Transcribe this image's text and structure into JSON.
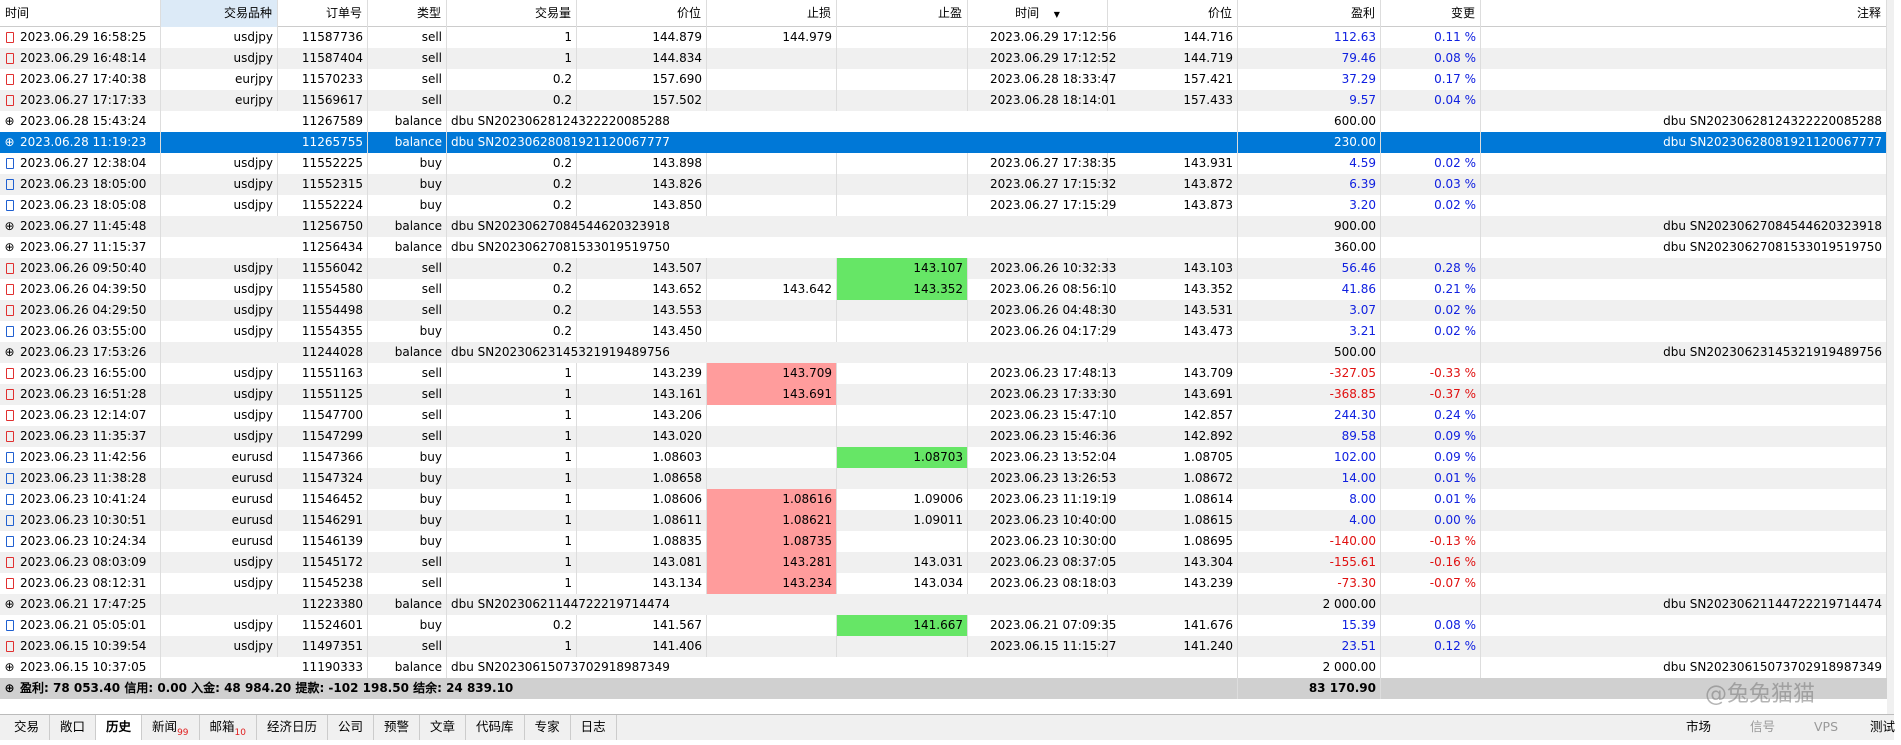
{
  "table": {
    "columns": [
      "时间",
      "交易品种",
      "订单号",
      "类型",
      "交易量",
      "价位",
      "止损",
      "止盈",
      "时间",
      "价位",
      "盈利",
      "变更",
      "注释"
    ],
    "rows": [
      {
        "time": "2023.06.29 16:58:25",
        "symbol": "usdjpy",
        "order": "11587736",
        "type": "sell",
        "volume": "1",
        "price": "144.879",
        "sl": "144.979",
        "close_time": "2023.06.29 17:12:56",
        "close_price": "144.716",
        "profit": "112.63",
        "change": "0.11 %"
      },
      {
        "time": "2023.06.29 16:48:14",
        "symbol": "usdjpy",
        "order": "11587404",
        "type": "sell",
        "volume": "1",
        "price": "144.834",
        "close_time": "2023.06.29 17:12:52",
        "close_price": "144.719",
        "profit": "79.46",
        "change": "0.08 %"
      },
      {
        "time": "2023.06.27 17:40:38",
        "symbol": "eurjpy",
        "order": "11570233",
        "type": "sell",
        "volume": "0.2",
        "price": "157.690",
        "close_time": "2023.06.28 18:33:47",
        "close_price": "157.421",
        "profit": "37.29",
        "change": "0.17 %"
      },
      {
        "time": "2023.06.27 17:17:33",
        "symbol": "eurjpy",
        "order": "11569617",
        "type": "sell",
        "volume": "0.2",
        "price": "157.502",
        "close_time": "2023.06.28 18:14:01",
        "close_price": "157.433",
        "profit": "9.57",
        "change": "0.04 %"
      },
      {
        "time": "2023.06.28 15:43:24",
        "order": "11267589",
        "type": "balance",
        "comment": "dbu SN20230628124322220085288",
        "profit": "600.00"
      },
      {
        "time": "2023.06.28 11:19:23",
        "order": "11265755",
        "type": "balance",
        "comment": "dbu SN20230628081921120067777",
        "profit": "230.00",
        "selected": true
      },
      {
        "time": "2023.06.27 12:38:04",
        "symbol": "usdjpy",
        "order": "11552225",
        "type": "buy",
        "volume": "0.2",
        "price": "143.898",
        "close_time": "2023.06.27 17:38:35",
        "close_price": "143.931",
        "profit": "4.59",
        "change": "0.02 %"
      },
      {
        "time": "2023.06.23 18:05:00",
        "symbol": "usdjpy",
        "order": "11552315",
        "type": "buy",
        "volume": "0.2",
        "price": "143.826",
        "close_time": "2023.06.27 17:15:32",
        "close_price": "143.872",
        "profit": "6.39",
        "change": "0.03 %"
      },
      {
        "time": "2023.06.23 18:05:08",
        "symbol": "usdjpy",
        "order": "11552224",
        "type": "buy",
        "volume": "0.2",
        "price": "143.850",
        "close_time": "2023.06.27 17:15:29",
        "close_price": "143.873",
        "profit": "3.20",
        "change": "0.02 %"
      },
      {
        "time": "2023.06.27 11:45:48",
        "order": "11256750",
        "type": "balance",
        "comment": "dbu SN20230627084544620323918",
        "profit": "900.00"
      },
      {
        "time": "2023.06.27 11:15:37",
        "order": "11256434",
        "type": "balance",
        "comment": "dbu SN20230627081533019519750",
        "profit": "360.00"
      },
      {
        "time": "2023.06.26 09:50:40",
        "symbol": "usdjpy",
        "order": "11556042",
        "type": "sell",
        "volume": "0.2",
        "price": "143.507",
        "tp": "143.107",
        "hit": "tp",
        "close_time": "2023.06.26 10:32:33",
        "close_price": "143.103",
        "profit": "56.46",
        "change": "0.28 %"
      },
      {
        "time": "2023.06.26 04:39:50",
        "symbol": "usdjpy",
        "order": "11554580",
        "type": "sell",
        "volume": "0.2",
        "price": "143.652",
        "sl": "143.642",
        "tp": "143.352",
        "hit": "tp",
        "close_time": "2023.06.26 08:56:10",
        "close_price": "143.352",
        "profit": "41.86",
        "change": "0.21 %"
      },
      {
        "time": "2023.06.26 04:29:50",
        "symbol": "usdjpy",
        "order": "11554498",
        "type": "sell",
        "volume": "0.2",
        "price": "143.553",
        "close_time": "2023.06.26 04:48:30",
        "close_price": "143.531",
        "profit": "3.07",
        "change": "0.02 %"
      },
      {
        "time": "2023.06.26 03:55:00",
        "symbol": "usdjpy",
        "order": "11554355",
        "type": "buy",
        "volume": "0.2",
        "price": "143.450",
        "close_time": "2023.06.26 04:17:29",
        "close_price": "143.473",
        "profit": "3.21",
        "change": "0.02 %"
      },
      {
        "time": "2023.06.23 17:53:26",
        "order": "11244028",
        "type": "balance",
        "comment": "dbu SN20230623145321919489756",
        "profit": "500.00"
      },
      {
        "time": "2023.06.23 16:55:00",
        "symbol": "usdjpy",
        "order": "11551163",
        "type": "sell",
        "volume": "1",
        "price": "143.239",
        "sl": "143.709",
        "hit": "sl",
        "close_time": "2023.06.23 17:48:13",
        "close_price": "143.709",
        "profit": "-327.05",
        "change": "-0.33 %"
      },
      {
        "time": "2023.06.23 16:51:28",
        "symbol": "usdjpy",
        "order": "11551125",
        "type": "sell",
        "volume": "1",
        "price": "143.161",
        "sl": "143.691",
        "hit": "sl",
        "close_time": "2023.06.23 17:33:30",
        "close_price": "143.691",
        "profit": "-368.85",
        "change": "-0.37 %"
      },
      {
        "time": "2023.06.23 12:14:07",
        "symbol": "usdjpy",
        "order": "11547700",
        "type": "sell",
        "volume": "1",
        "price": "143.206",
        "close_time": "2023.06.23 15:47:10",
        "close_price": "142.857",
        "profit": "244.30",
        "change": "0.24 %"
      },
      {
        "time": "2023.06.23 11:35:37",
        "symbol": "usdjpy",
        "order": "11547299",
        "type": "sell",
        "volume": "1",
        "price": "143.020",
        "close_time": "2023.06.23 15:46:36",
        "close_price": "142.892",
        "profit": "89.58",
        "change": "0.09 %"
      },
      {
        "time": "2023.06.23 11:42:56",
        "symbol": "eurusd",
        "order": "11547366",
        "type": "buy",
        "volume": "1",
        "price": "1.08603",
        "tp": "1.08703",
        "hit": "tp",
        "close_time": "2023.06.23 13:52:04",
        "close_price": "1.08705",
        "profit": "102.00",
        "change": "0.09 %"
      },
      {
        "time": "2023.06.23 11:38:28",
        "symbol": "eurusd",
        "order": "11547324",
        "type": "buy",
        "volume": "1",
        "price": "1.08658",
        "close_time": "2023.06.23 13:26:53",
        "close_price": "1.08672",
        "profit": "14.00",
        "change": "0.01 %"
      },
      {
        "time": "2023.06.23 10:41:24",
        "symbol": "eurusd",
        "order": "11546452",
        "type": "buy",
        "volume": "1",
        "price": "1.08606",
        "sl": "1.08616",
        "tp": "1.09006",
        "hit": "sl",
        "close_time": "2023.06.23 11:19:19",
        "close_price": "1.08614",
        "profit": "8.00",
        "change": "0.01 %"
      },
      {
        "time": "2023.06.23 10:30:51",
        "symbol": "eurusd",
        "order": "11546291",
        "type": "buy",
        "volume": "1",
        "price": "1.08611",
        "sl": "1.08621",
        "tp": "1.09011",
        "hit": "sl",
        "close_time": "2023.06.23 10:40:00",
        "close_price": "1.08615",
        "profit": "4.00",
        "change": "0.00 %"
      },
      {
        "time": "2023.06.23 10:24:34",
        "symbol": "eurusd",
        "order": "11546139",
        "type": "buy",
        "volume": "1",
        "price": "1.08835",
        "sl": "1.08735",
        "hit": "sl",
        "close_time": "2023.06.23 10:30:00",
        "close_price": "1.08695",
        "profit": "-140.00",
        "change": "-0.13 %"
      },
      {
        "time": "2023.06.23 08:03:09",
        "symbol": "usdjpy",
        "order": "11545172",
        "type": "sell",
        "volume": "1",
        "price": "143.081",
        "sl": "143.281",
        "tp": "143.031",
        "hit": "sl",
        "close_time": "2023.06.23 08:37:05",
        "close_price": "143.304",
        "profit": "-155.61",
        "change": "-0.16 %"
      },
      {
        "time": "2023.06.23 08:12:31",
        "symbol": "usdjpy",
        "order": "11545238",
        "type": "sell",
        "volume": "1",
        "price": "143.134",
        "sl": "143.234",
        "tp": "143.034",
        "hit": "sl",
        "close_time": "2023.06.23 08:18:03",
        "close_price": "143.239",
        "profit": "-73.30",
        "change": "-0.07 %"
      },
      {
        "time": "2023.06.21 17:47:25",
        "order": "11223380",
        "type": "balance",
        "comment": "dbu SN20230621144722219714474",
        "profit": "2 000.00"
      },
      {
        "time": "2023.06.21 05:05:01",
        "symbol": "usdjpy",
        "order": "11524601",
        "type": "buy",
        "volume": "0.2",
        "price": "141.567",
        "tp": "141.667",
        "hit": "tp",
        "close_time": "2023.06.21 07:09:35",
        "close_price": "141.676",
        "profit": "15.39",
        "change": "0.08 %"
      },
      {
        "time": "2023.06.15 10:39:54",
        "symbol": "usdjpy",
        "order": "11497351",
        "type": "sell",
        "volume": "1",
        "price": "141.406",
        "close_time": "2023.06.15 11:15:27",
        "close_price": "141.240",
        "profit": "23.51",
        "change": "0.12 %"
      },
      {
        "time": "2023.06.15 10:37:05",
        "order": "11190333",
        "type": "balance",
        "comment": "dbu SN20230615073702918987349",
        "profit": "2 000.00"
      }
    ],
    "summary": {
      "text": "盈利: 78 053.40 信用: 0.00 入金: 48 984.20 提款: -102 198.50 结余: 24 839.10",
      "total": "83 170.90"
    }
  },
  "tabs": [
    {
      "label": "交易"
    },
    {
      "label": "敞口"
    },
    {
      "label": "历史",
      "active": true
    },
    {
      "label": "新闻",
      "badge": "99"
    },
    {
      "label": "邮箱",
      "badge": "10"
    },
    {
      "label": "经济日历"
    },
    {
      "label": "公司"
    },
    {
      "label": "预警"
    },
    {
      "label": "文章"
    },
    {
      "label": "代码库"
    },
    {
      "label": "专家"
    },
    {
      "label": "日志"
    }
  ],
  "status": [
    "市场",
    "信号",
    "VPS",
    "测试"
  ],
  "watermark": "@兔兔猫猫"
}
